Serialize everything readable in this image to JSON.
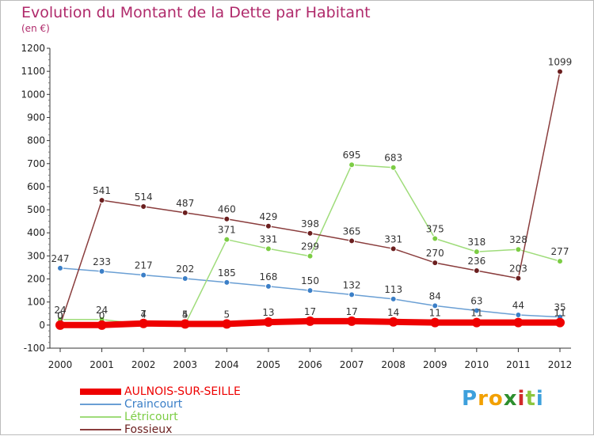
{
  "chart_data": {
    "type": "line",
    "title": "Evolution du Montant de la Dette par Habitant",
    "unit": "(en €)",
    "x": [
      "2000",
      "2001",
      "2002",
      "2003",
      "2004",
      "2005",
      "2006",
      "2007",
      "2008",
      "2009",
      "2010",
      "2011",
      "2012"
    ],
    "ylim": [
      -100,
      1200
    ],
    "yticks": [
      -100,
      0,
      100,
      200,
      300,
      400,
      500,
      600,
      700,
      800,
      900,
      1000,
      1100,
      1200
    ],
    "grid": false,
    "legend_position": "bottom-left",
    "series": [
      {
        "name": "AULNOIS-SUR-SEILLE",
        "color": "#ee0000",
        "values": [
          0,
          0,
          7,
          5,
          5,
          13,
          17,
          17,
          14,
          11,
          11,
          11,
          11
        ],
        "labels": [
          "0",
          "0",
          "7",
          "5",
          "5",
          "13",
          "17",
          "17",
          "14",
          "11",
          "11",
          "",
          "11"
        ]
      },
      {
        "name": "Craincourt",
        "color": "#6a9fd4",
        "dot": "#3b7fc7",
        "values": [
          247,
          233,
          217,
          202,
          185,
          168,
          150,
          132,
          113,
          84,
          63,
          44,
          35
        ],
        "labels": [
          "247",
          "233",
          "217",
          "202",
          "185",
          "168",
          "150",
          "132",
          "113",
          "84",
          "63",
          "44",
          "35"
        ]
      },
      {
        "name": "Létricourt",
        "color": "#9fdc7a",
        "dot": "#7ccd44",
        "values": [
          24,
          24,
          4,
          4,
          371,
          331,
          299,
          695,
          683,
          375,
          318,
          328,
          277
        ],
        "labels": [
          "24",
          "24",
          "4",
          "4",
          "371",
          "331",
          "299",
          "695",
          "683",
          "375",
          "318",
          "328",
          "277"
        ]
      },
      {
        "name": "Fossieux",
        "color": "#8a3d3d",
        "dot": "#6b1f1f",
        "values": [
          0,
          541,
          514,
          487,
          460,
          429,
          398,
          365,
          331,
          270,
          236,
          203,
          1099
        ],
        "labels": [
          "0",
          "541",
          "514",
          "487",
          "460",
          "429",
          "398",
          "365",
          "331",
          "270",
          "236",
          "203",
          "1099"
        ]
      }
    ]
  },
  "logo": {
    "letters": [
      "P",
      "r",
      "o",
      "x",
      "i",
      "t",
      "i"
    ],
    "colors": [
      "#3da0dc",
      "#f2a000",
      "#f2a000",
      "#2e8f2e",
      "#d12a2a",
      "#8cc63e",
      "#3da0dc"
    ]
  }
}
